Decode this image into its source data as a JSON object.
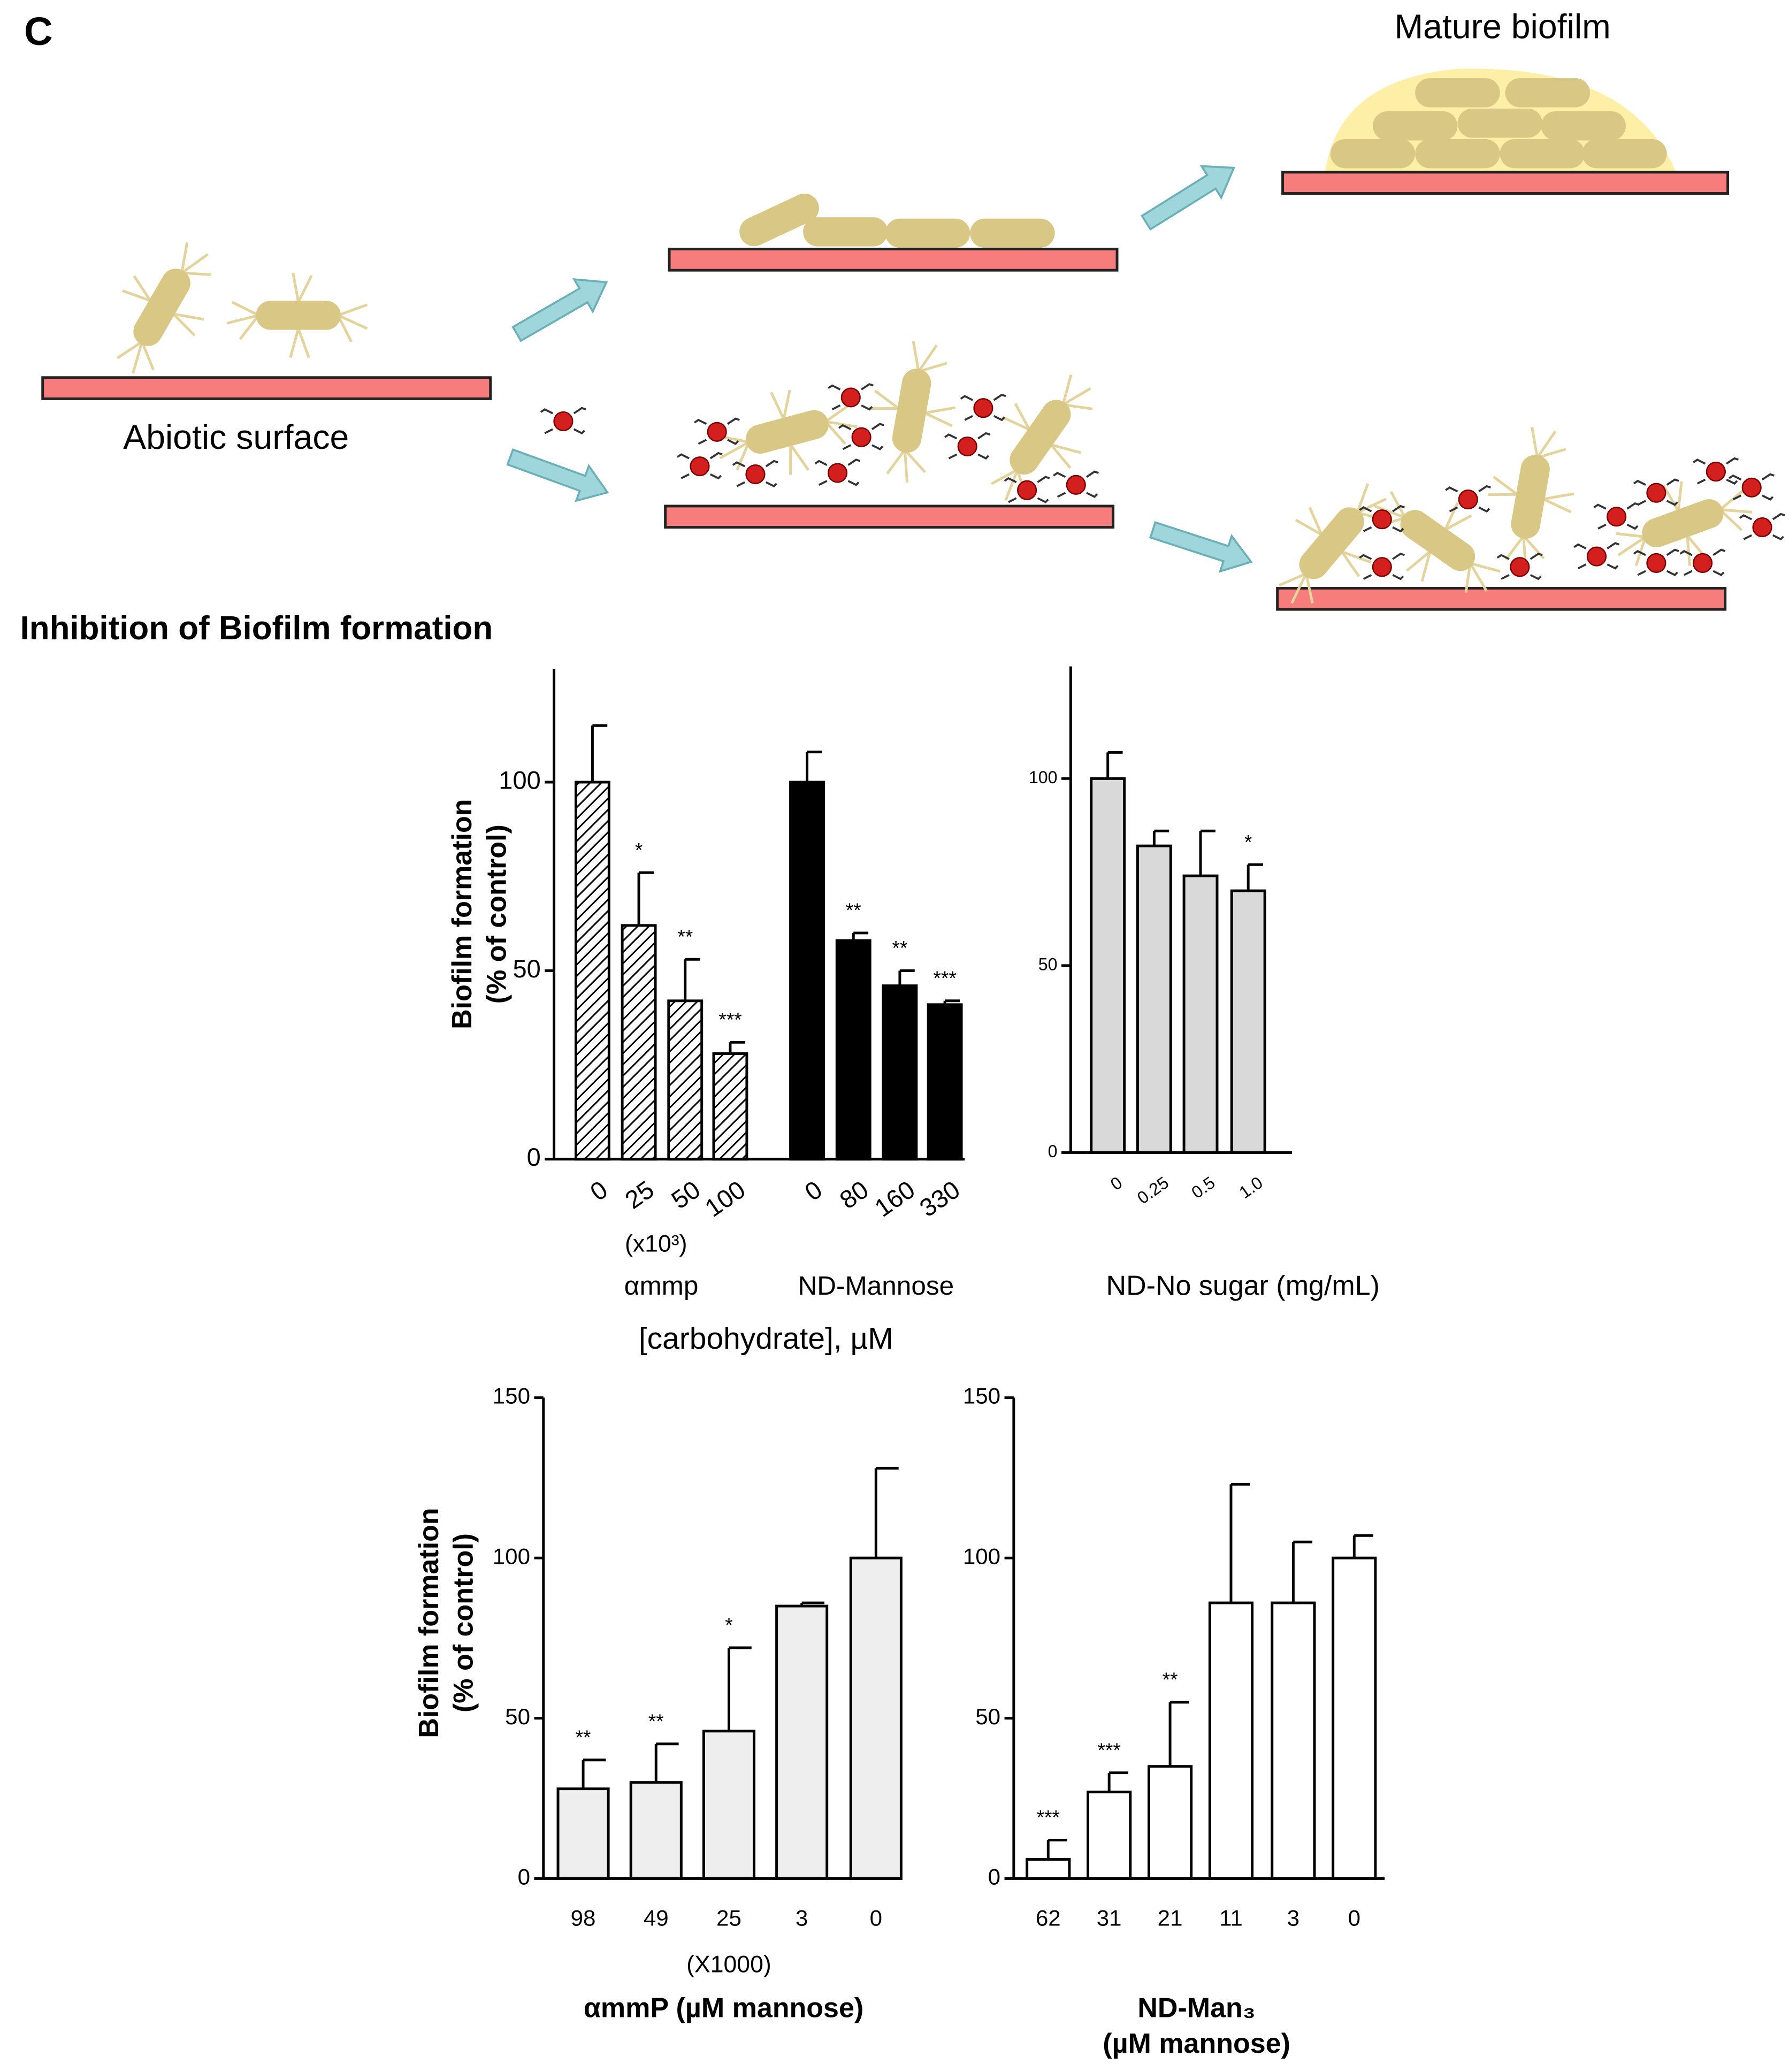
{
  "panel_label": "C",
  "diagram": {
    "mature_label": "Mature biofilm",
    "surface_label": "Abiotic surface"
  },
  "section_title": "Inhibition of Biofilm formation",
  "chart_data": [
    {
      "type": "bar",
      "ylabel": [
        "Biofilm formation",
        "(% of control)"
      ],
      "ylim": [
        0,
        130
      ],
      "yticks": [
        0,
        50,
        100
      ],
      "multiplier": "(x10³)",
      "xlabel": "[carbohydrate], µM",
      "series": [
        {
          "name": "αmmp",
          "pattern": "hatch",
          "color": "#000000",
          "categories": [
            "0",
            "25",
            "50",
            "100"
          ],
          "values": [
            100,
            62,
            42,
            28
          ],
          "errors": [
            15,
            14,
            11,
            3
          ],
          "annotations": [
            null,
            "*",
            "**",
            "***"
          ]
        },
        {
          "name": "ND-Mannose",
          "color": "#000000",
          "categories": [
            "0",
            "80",
            "160",
            "330"
          ],
          "values": [
            100,
            58,
            46,
            41
          ],
          "errors": [
            8,
            2,
            4,
            1
          ],
          "annotations": [
            null,
            "**",
            "**",
            "***"
          ]
        }
      ]
    },
    {
      "type": "bar",
      "ylim": [
        0,
        130
      ],
      "yticks": [
        0,
        50,
        100
      ],
      "xlabel": "ND-No sugar (mg/mL)",
      "series": [
        {
          "color": "#d9d9d9",
          "categories": [
            "0",
            "0.25",
            "0.5",
            "1.0"
          ],
          "values": [
            100,
            82,
            74,
            70
          ],
          "errors": [
            7,
            4,
            12,
            7
          ],
          "annotations": [
            null,
            null,
            null,
            "*"
          ]
        }
      ]
    },
    {
      "type": "bar",
      "ylabel": [
        "Biofilm formation",
        "(% of control)"
      ],
      "ylim": [
        0,
        150
      ],
      "yticks": [
        0,
        50,
        100,
        150
      ],
      "multiplier": "(X1000)",
      "xlabel": "αmmP (µM mannose)",
      "series": [
        {
          "color": "#eeeeee",
          "categories": [
            "98",
            "49",
            "25",
            "3",
            "0"
          ],
          "values": [
            28,
            30,
            46,
            85,
            100
          ],
          "errors": [
            9,
            12,
            26,
            1,
            28
          ],
          "annotations": [
            "**",
            "**",
            "*",
            null,
            null
          ]
        }
      ]
    },
    {
      "type": "bar",
      "ylim": [
        0,
        150
      ],
      "yticks": [
        0,
        50,
        100,
        150
      ],
      "xlabel": [
        "ND-Man₃",
        "(µM mannose)"
      ],
      "series": [
        {
          "color": "#ffffff",
          "categories": [
            "62",
            "31",
            "21",
            "11",
            "3",
            "0"
          ],
          "values": [
            6,
            27,
            35,
            86,
            86,
            100
          ],
          "errors": [
            6,
            6,
            20,
            37,
            19,
            7
          ],
          "annotations": [
            "***",
            "***",
            "**",
            null,
            null,
            null
          ]
        }
      ]
    }
  ]
}
